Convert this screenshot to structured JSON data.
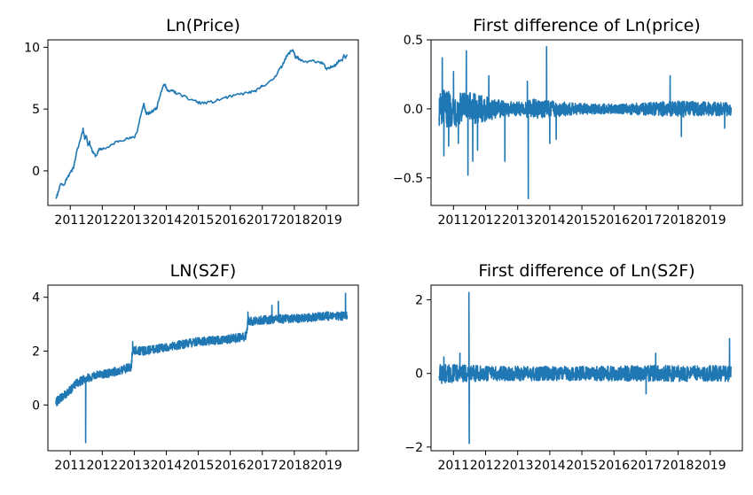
{
  "figure": {
    "background": "#ffffff",
    "line_color": "#1f77b4"
  },
  "chart_data": [
    {
      "id": "ln-price",
      "type": "line",
      "title": "Ln(Price)",
      "xlabel": "",
      "ylabel": "",
      "xlim": [
        2010.3,
        2020.0
      ],
      "ylim": [
        -2.8,
        10.6
      ],
      "xticks": [
        2011,
        2012,
        2013,
        2014,
        2015,
        2016,
        2017,
        2018,
        2019
      ],
      "xtick_labels": [
        "2011",
        "2012",
        "2013",
        "2014",
        "2015",
        "2016",
        "2017",
        "2018",
        "2019"
      ],
      "yticks": [
        0,
        5,
        10
      ],
      "ytick_labels": [
        "0",
        "5",
        "10"
      ],
      "grid": false,
      "series": [
        {
          "x": [
            2010.55,
            2010.6,
            2010.7,
            2010.8,
            2010.9,
            2011.0,
            2011.1,
            2011.2,
            2011.3,
            2011.4,
            2011.45,
            2011.5,
            2011.55,
            2011.6,
            2011.7,
            2011.8,
            2011.9,
            2012.0,
            2012.2,
            2012.4,
            2012.6,
            2012.8,
            2013.0,
            2013.1,
            2013.2,
            2013.3,
            2013.35,
            2013.4,
            2013.5,
            2013.6,
            2013.7,
            2013.8,
            2013.9,
            2013.95,
            2014.0,
            2014.1,
            2014.2,
            2014.3,
            2014.5,
            2014.7,
            2014.9,
            2015.0,
            2015.2,
            2015.5,
            2015.8,
            2016.0,
            2016.3,
            2016.5,
            2016.7,
            2016.9,
            2017.0,
            2017.2,
            2017.4,
            2017.5,
            2017.6,
            2017.7,
            2017.8,
            2017.9,
            2017.95,
            2018.0,
            2018.05,
            2018.1,
            2018.2,
            2018.4,
            2018.6,
            2018.8,
            2018.9,
            2019.0,
            2019.1,
            2019.2,
            2019.3,
            2019.4,
            2019.5,
            2019.55,
            2019.6,
            2019.65
          ],
          "y": [
            -2.2,
            -1.9,
            -1.0,
            -1.2,
            -0.5,
            -0.2,
            0.3,
            1.5,
            2.4,
            3.4,
            2.6,
            2.9,
            2.1,
            2.3,
            1.5,
            1.2,
            1.7,
            1.8,
            1.9,
            2.3,
            2.5,
            2.6,
            2.7,
            3.3,
            4.5,
            5.4,
            4.8,
            4.6,
            4.7,
            4.9,
            5.1,
            6.1,
            6.9,
            7.0,
            6.7,
            6.4,
            6.5,
            6.3,
            6.1,
            5.8,
            5.7,
            5.5,
            5.5,
            5.6,
            5.9,
            6.0,
            6.2,
            6.3,
            6.4,
            6.6,
            6.9,
            7.1,
            7.6,
            8.1,
            8.4,
            9.0,
            9.4,
            9.7,
            9.8,
            9.5,
            9.1,
            9.2,
            8.9,
            8.8,
            8.9,
            8.8,
            8.7,
            8.2,
            8.3,
            8.5,
            8.6,
            8.9,
            9.0,
            9.4,
            9.2,
            9.3
          ]
        }
      ]
    },
    {
      "id": "diff-ln-price",
      "type": "line",
      "title": "First difference of Ln(price)",
      "xlabel": "",
      "ylabel": "",
      "xlim": [
        2010.3,
        2020.0
      ],
      "ylim": [
        -0.7,
        0.5
      ],
      "xticks": [
        2011,
        2012,
        2013,
        2014,
        2015,
        2016,
        2017,
        2018,
        2019
      ],
      "xtick_labels": [
        "2011",
        "2012",
        "2013",
        "2014",
        "2015",
        "2016",
        "2017",
        "2018",
        "2019"
      ],
      "yticks": [
        -0.5,
        0.0,
        0.5
      ],
      "ytick_labels": [
        "−0.5",
        "0.0",
        "0.5"
      ],
      "grid": false,
      "noise_profile": {
        "x": [
          2010.55,
          2011.0,
          2011.5,
          2012.0,
          2012.5,
          2013.0,
          2013.5,
          2014.0,
          2014.5,
          2015.0,
          2016.0,
          2017.0,
          2018.0,
          2019.0,
          2019.65
        ],
        "amplitude": [
          0.14,
          0.13,
          0.12,
          0.09,
          0.06,
          0.05,
          0.07,
          0.06,
          0.05,
          0.04,
          0.035,
          0.045,
          0.06,
          0.05,
          0.05
        ]
      },
      "spikes": [
        {
          "x": 2010.65,
          "y": 0.37
        },
        {
          "x": 2010.7,
          "y": -0.34
        },
        {
          "x": 2010.85,
          "y": -0.27
        },
        {
          "x": 2011.0,
          "y": 0.27
        },
        {
          "x": 2011.15,
          "y": -0.25
        },
        {
          "x": 2011.4,
          "y": 0.42
        },
        {
          "x": 2011.45,
          "y": -0.48
        },
        {
          "x": 2011.6,
          "y": -0.38
        },
        {
          "x": 2011.75,
          "y": -0.3
        },
        {
          "x": 2012.1,
          "y": 0.24
        },
        {
          "x": 2012.6,
          "y": -0.38
        },
        {
          "x": 2013.3,
          "y": 0.2
        },
        {
          "x": 2013.33,
          "y": -0.65
        },
        {
          "x": 2013.9,
          "y": 0.45
        },
        {
          "x": 2014.0,
          "y": -0.25
        },
        {
          "x": 2014.2,
          "y": -0.22
        },
        {
          "x": 2017.75,
          "y": 0.24
        },
        {
          "x": 2018.1,
          "y": -0.2
        },
        {
          "x": 2019.45,
          "y": -0.14
        }
      ]
    },
    {
      "id": "ln-s2f",
      "type": "line",
      "title": "LN(S2F)",
      "xlabel": "",
      "ylabel": "",
      "xlim": [
        2010.3,
        2020.0
      ],
      "ylim": [
        -1.7,
        4.45
      ],
      "xticks": [
        2011,
        2012,
        2013,
        2014,
        2015,
        2016,
        2017,
        2018,
        2019
      ],
      "xtick_labels": [
        "2011",
        "2012",
        "2013",
        "2014",
        "2015",
        "2016",
        "2017",
        "2018",
        "2019"
      ],
      "yticks": [
        0,
        2,
        4
      ],
      "ytick_labels": [
        "0",
        "2",
        "4"
      ],
      "grid": false,
      "trend": {
        "x": [
          2010.55,
          2010.8,
          2011.0,
          2011.2,
          2011.5,
          2011.8,
          2012.0,
          2012.3,
          2012.6,
          2012.9,
          2012.95,
          2013.2,
          2013.6,
          2014.0,
          2014.5,
          2015.0,
          2015.5,
          2016.0,
          2016.5,
          2016.55,
          2017.0,
          2017.5,
          2018.0,
          2018.5,
          2019.0,
          2019.5,
          2019.65
        ],
        "y": [
          0.1,
          0.35,
          0.55,
          0.8,
          1.0,
          1.1,
          1.15,
          1.2,
          1.3,
          1.4,
          2.05,
          2.0,
          2.05,
          2.15,
          2.25,
          2.35,
          2.4,
          2.45,
          2.55,
          3.1,
          3.15,
          3.2,
          3.2,
          3.25,
          3.3,
          3.3,
          3.3
        ]
      },
      "noise_amplitude": 0.16,
      "spikes": [
        {
          "x": 2011.48,
          "y": -1.4
        },
        {
          "x": 2011.2,
          "y": 0.95
        },
        {
          "x": 2012.95,
          "y": 2.35
        },
        {
          "x": 2016.55,
          "y": 3.45
        },
        {
          "x": 2017.3,
          "y": 3.7
        },
        {
          "x": 2017.5,
          "y": 3.85
        },
        {
          "x": 2019.6,
          "y": 4.15
        }
      ]
    },
    {
      "id": "diff-ln-s2f",
      "type": "line",
      "title": "First difference of Ln(S2F)",
      "xlabel": "",
      "ylabel": "",
      "xlim": [
        2010.3,
        2020.0
      ],
      "ylim": [
        -2.1,
        2.4
      ],
      "xticks": [
        2011,
        2012,
        2013,
        2014,
        2015,
        2016,
        2017,
        2018,
        2019
      ],
      "xtick_labels": [
        "2011",
        "2012",
        "2013",
        "2014",
        "2015",
        "2016",
        "2017",
        "2018",
        "2019"
      ],
      "yticks": [
        -2,
        0,
        2
      ],
      "ytick_labels": [
        "−2",
        "0",
        "2"
      ],
      "grid": false,
      "noise_profile": {
        "x": [
          2010.55,
          2011.0,
          2012.0,
          2013.0,
          2014.0,
          2015.0,
          2016.0,
          2017.0,
          2018.0,
          2019.0,
          2019.65
        ],
        "amplitude": [
          0.28,
          0.25,
          0.2,
          0.2,
          0.2,
          0.2,
          0.2,
          0.22,
          0.22,
          0.22,
          0.22
        ]
      },
      "spikes": [
        {
          "x": 2011.48,
          "y": 2.2
        },
        {
          "x": 2011.49,
          "y": -1.9
        },
        {
          "x": 2010.7,
          "y": 0.45
        },
        {
          "x": 2011.2,
          "y": 0.55
        },
        {
          "x": 2017.0,
          "y": -0.55
        },
        {
          "x": 2017.3,
          "y": 0.55
        },
        {
          "x": 2019.6,
          "y": 0.95
        }
      ]
    }
  ]
}
